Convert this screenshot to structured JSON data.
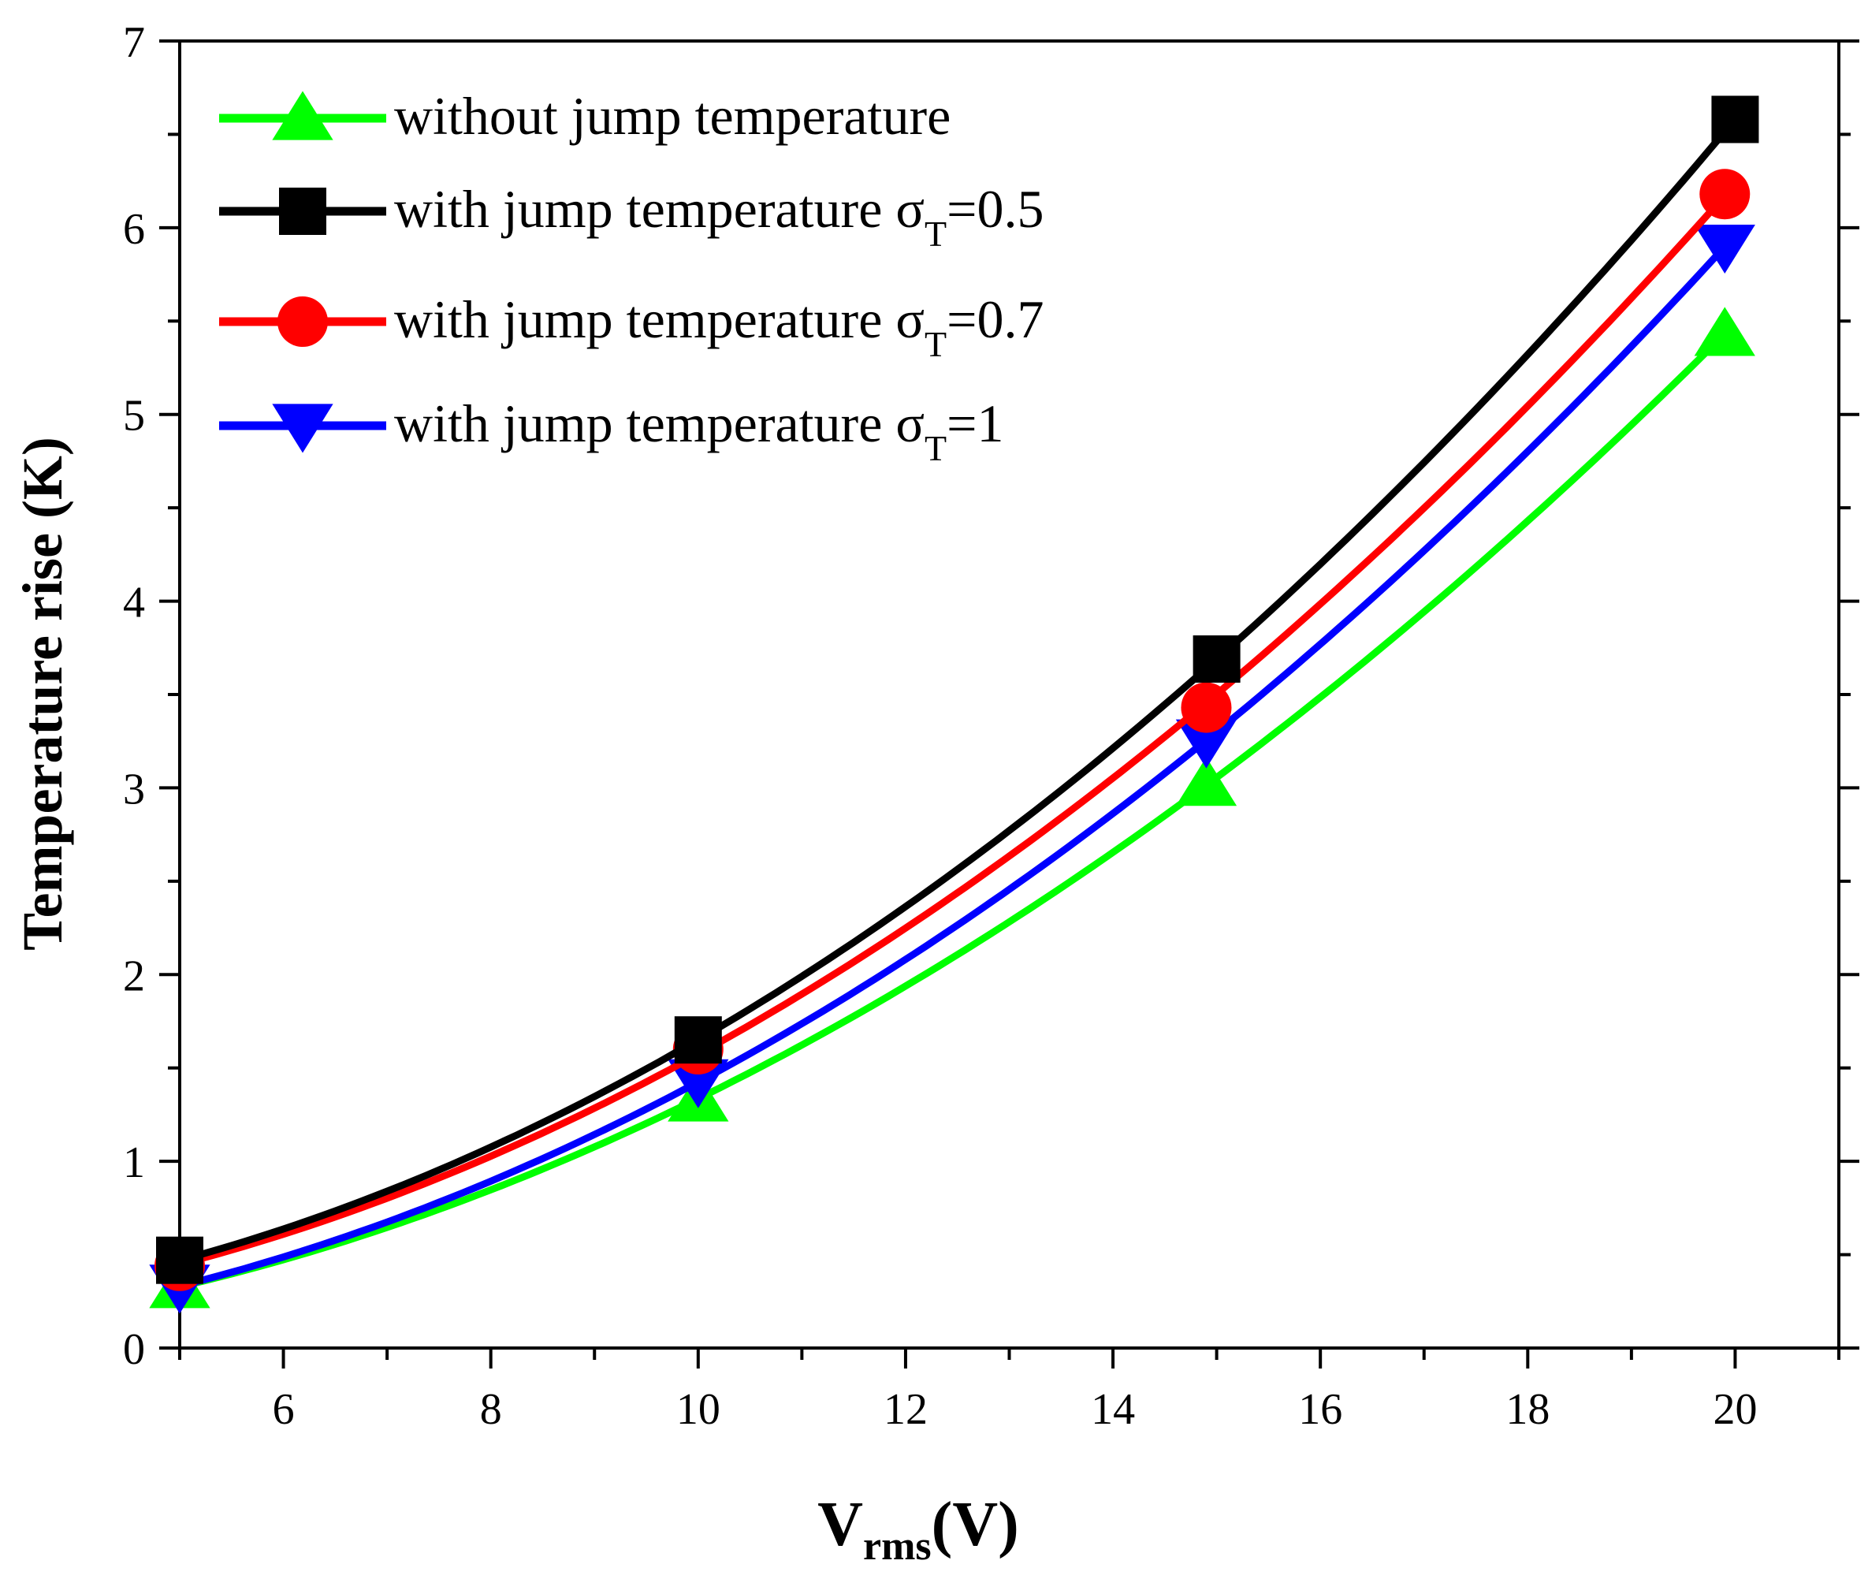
{
  "chart_data": {
    "type": "line",
    "title": "",
    "xlabel": {
      "main": "V",
      "sub": "rms",
      "unit": "(V)"
    },
    "ylabel": "Temperature rise (K)",
    "xlim": [
      5,
      21
    ],
    "ylim": [
      0,
      7
    ],
    "xticks": [
      6,
      8,
      10,
      12,
      14,
      16,
      18,
      20
    ],
    "yticks": [
      0,
      1,
      2,
      3,
      4,
      5,
      6,
      7
    ],
    "x_minor_step": 1,
    "y_minor_step": 0.5,
    "grid": false,
    "legend_position": "top-left",
    "series": [
      {
        "name": "without jump temperature",
        "legend_prefix": "without jump temperature",
        "legend_sigma": "",
        "legend_sub": "",
        "legend_value": "",
        "color": "#00ff00",
        "marker": "triangle-up",
        "x": [
          5,
          10,
          14.9,
          19.9
        ],
        "values": [
          0.33,
          1.33,
          3.02,
          5.43
        ]
      },
      {
        "name": "with jump temperature σT=0.5",
        "legend_prefix": " with jump temperature ",
        "legend_sigma": "σ",
        "legend_sub": "T",
        "legend_value": "=0.5",
        "color": "#000000",
        "marker": "square",
        "x": [
          5,
          10,
          15,
          20
        ],
        "values": [
          0.47,
          1.65,
          3.69,
          6.58
        ]
      },
      {
        "name": "with jump temperature σT=0.7",
        "legend_prefix": "with jump temperature ",
        "legend_sigma": "σ",
        "legend_sub": "T",
        "legend_value": "=0.7",
        "color": "#ff0000",
        "marker": "circle",
        "x": [
          5,
          10,
          14.9,
          19.9
        ],
        "values": [
          0.44,
          1.6,
          3.43,
          6.18
        ]
      },
      {
        "name": "with jump temperature σT=1",
        "legend_prefix": " with jump temperature ",
        "legend_sigma": "σ",
        "legend_sub": "T",
        "legend_value": "=1",
        "color": "#0000ff",
        "marker": "triangle-down",
        "x": [
          5,
          10,
          14.9,
          19.9
        ],
        "values": [
          0.33,
          1.43,
          3.25,
          5.9
        ]
      }
    ]
  }
}
